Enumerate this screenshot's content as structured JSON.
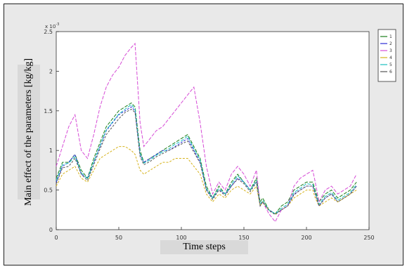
{
  "figure": {
    "background": "#e9e9e9",
    "axes_background": "#ffffff"
  },
  "chart_data": {
    "type": "line",
    "title": "",
    "xlabel": "Time steps",
    "ylabel": "Main effect of the parameters [kg/kg]",
    "xlim": [
      0,
      250
    ],
    "ylim": [
      0,
      2.5
    ],
    "y_exponent_label": "x 10",
    "y_exponent_power": "-3",
    "x_ticks": [
      "0",
      "50",
      "100",
      "150",
      "200",
      "250"
    ],
    "y_ticks": [
      "0",
      "0.5",
      "1",
      "1.5",
      "2",
      "2.5"
    ],
    "grid": false,
    "legend_position": "top-right",
    "legend_entries": [
      "1",
      "2",
      "3",
      "4",
      "5",
      "6"
    ],
    "x": [
      0,
      5,
      10,
      15,
      20,
      25,
      30,
      35,
      40,
      45,
      50,
      55,
      60,
      63,
      67,
      70,
      75,
      80,
      85,
      90,
      95,
      100,
      105,
      110,
      115,
      120,
      125,
      130,
      135,
      140,
      145,
      150,
      155,
      160,
      163,
      165,
      170,
      175,
      180,
      185,
      190,
      195,
      200,
      205,
      207,
      210,
      215,
      220,
      225,
      230,
      235,
      240
    ],
    "series": [
      {
        "color": "#1b7f1b",
        "values": [
          0.65,
          0.85,
          0.85,
          0.95,
          0.75,
          0.65,
          0.9,
          1.1,
          1.3,
          1.4,
          1.5,
          1.55,
          1.6,
          1.55,
          1.0,
          0.85,
          0.9,
          0.95,
          1.0,
          1.05,
          1.1,
          1.15,
          1.2,
          1.05,
          0.9,
          0.55,
          0.4,
          0.55,
          0.45,
          0.6,
          0.7,
          0.6,
          0.5,
          0.65,
          0.35,
          0.4,
          0.25,
          0.2,
          0.3,
          0.35,
          0.5,
          0.55,
          0.6,
          0.6,
          0.5,
          0.35,
          0.45,
          0.5,
          0.4,
          0.45,
          0.5,
          0.6
        ]
      },
      {
        "color": "#2b2bd6",
        "values": [
          0.6,
          0.8,
          0.85,
          0.95,
          0.7,
          0.65,
          0.85,
          1.05,
          1.25,
          1.35,
          1.45,
          1.5,
          1.55,
          1.5,
          0.95,
          0.85,
          0.9,
          0.95,
          1.0,
          1.0,
          1.05,
          1.1,
          1.15,
          1.0,
          0.85,
          0.5,
          0.4,
          0.5,
          0.45,
          0.55,
          0.65,
          0.6,
          0.5,
          0.6,
          0.3,
          0.35,
          0.25,
          0.2,
          0.25,
          0.3,
          0.45,
          0.5,
          0.55,
          0.55,
          0.45,
          0.3,
          0.4,
          0.45,
          0.35,
          0.4,
          0.45,
          0.55
        ]
      },
      {
        "color": "#d64bd6",
        "values": [
          0.8,
          1.05,
          1.3,
          1.45,
          1.0,
          0.9,
          1.2,
          1.55,
          1.8,
          1.95,
          2.05,
          2.2,
          2.3,
          2.35,
          1.35,
          1.05,
          1.15,
          1.25,
          1.3,
          1.4,
          1.5,
          1.6,
          1.7,
          1.8,
          1.35,
          0.8,
          0.45,
          0.6,
          0.5,
          0.7,
          0.8,
          0.7,
          0.55,
          0.75,
          0.3,
          0.35,
          0.2,
          0.1,
          0.25,
          0.3,
          0.55,
          0.65,
          0.7,
          0.75,
          0.6,
          0.35,
          0.5,
          0.55,
          0.45,
          0.5,
          0.55,
          0.7
        ]
      },
      {
        "color": "#d6b21b",
        "values": [
          0.55,
          0.7,
          0.75,
          0.8,
          0.65,
          0.6,
          0.75,
          0.9,
          0.95,
          1.0,
          1.05,
          1.05,
          1.0,
          0.95,
          0.75,
          0.7,
          0.75,
          0.8,
          0.85,
          0.85,
          0.9,
          0.9,
          0.9,
          0.8,
          0.7,
          0.45,
          0.35,
          0.45,
          0.4,
          0.5,
          0.55,
          0.5,
          0.45,
          0.55,
          0.3,
          0.35,
          0.25,
          0.2,
          0.25,
          0.3,
          0.4,
          0.45,
          0.5,
          0.5,
          0.4,
          0.3,
          0.35,
          0.4,
          0.35,
          0.4,
          0.45,
          0.5
        ]
      },
      {
        "color": "#1bbfbf",
        "values": [
          0.62,
          0.82,
          0.84,
          0.92,
          0.72,
          0.64,
          0.86,
          1.06,
          1.26,
          1.36,
          1.46,
          1.52,
          1.58,
          1.52,
          0.96,
          0.84,
          0.88,
          0.94,
          0.98,
          1.02,
          1.08,
          1.12,
          1.18,
          1.02,
          0.88,
          0.52,
          0.4,
          0.52,
          0.45,
          0.57,
          0.68,
          0.6,
          0.5,
          0.62,
          0.32,
          0.37,
          0.25,
          0.2,
          0.27,
          0.32,
          0.47,
          0.52,
          0.58,
          0.57,
          0.47,
          0.32,
          0.42,
          0.47,
          0.37,
          0.42,
          0.47,
          0.57
        ]
      },
      {
        "color": "#555555",
        "values": [
          0.58,
          0.78,
          0.8,
          0.9,
          0.7,
          0.62,
          0.82,
          1.02,
          1.2,
          1.3,
          1.4,
          1.48,
          1.52,
          1.48,
          0.92,
          0.82,
          0.86,
          0.92,
          0.96,
          1.0,
          1.04,
          1.08,
          1.12,
          0.98,
          0.84,
          0.5,
          0.38,
          0.5,
          0.43,
          0.55,
          0.64,
          0.58,
          0.48,
          0.6,
          0.3,
          0.35,
          0.24,
          0.19,
          0.25,
          0.3,
          0.44,
          0.5,
          0.55,
          0.55,
          0.45,
          0.3,
          0.4,
          0.45,
          0.35,
          0.4,
          0.45,
          0.55
        ]
      }
    ]
  }
}
